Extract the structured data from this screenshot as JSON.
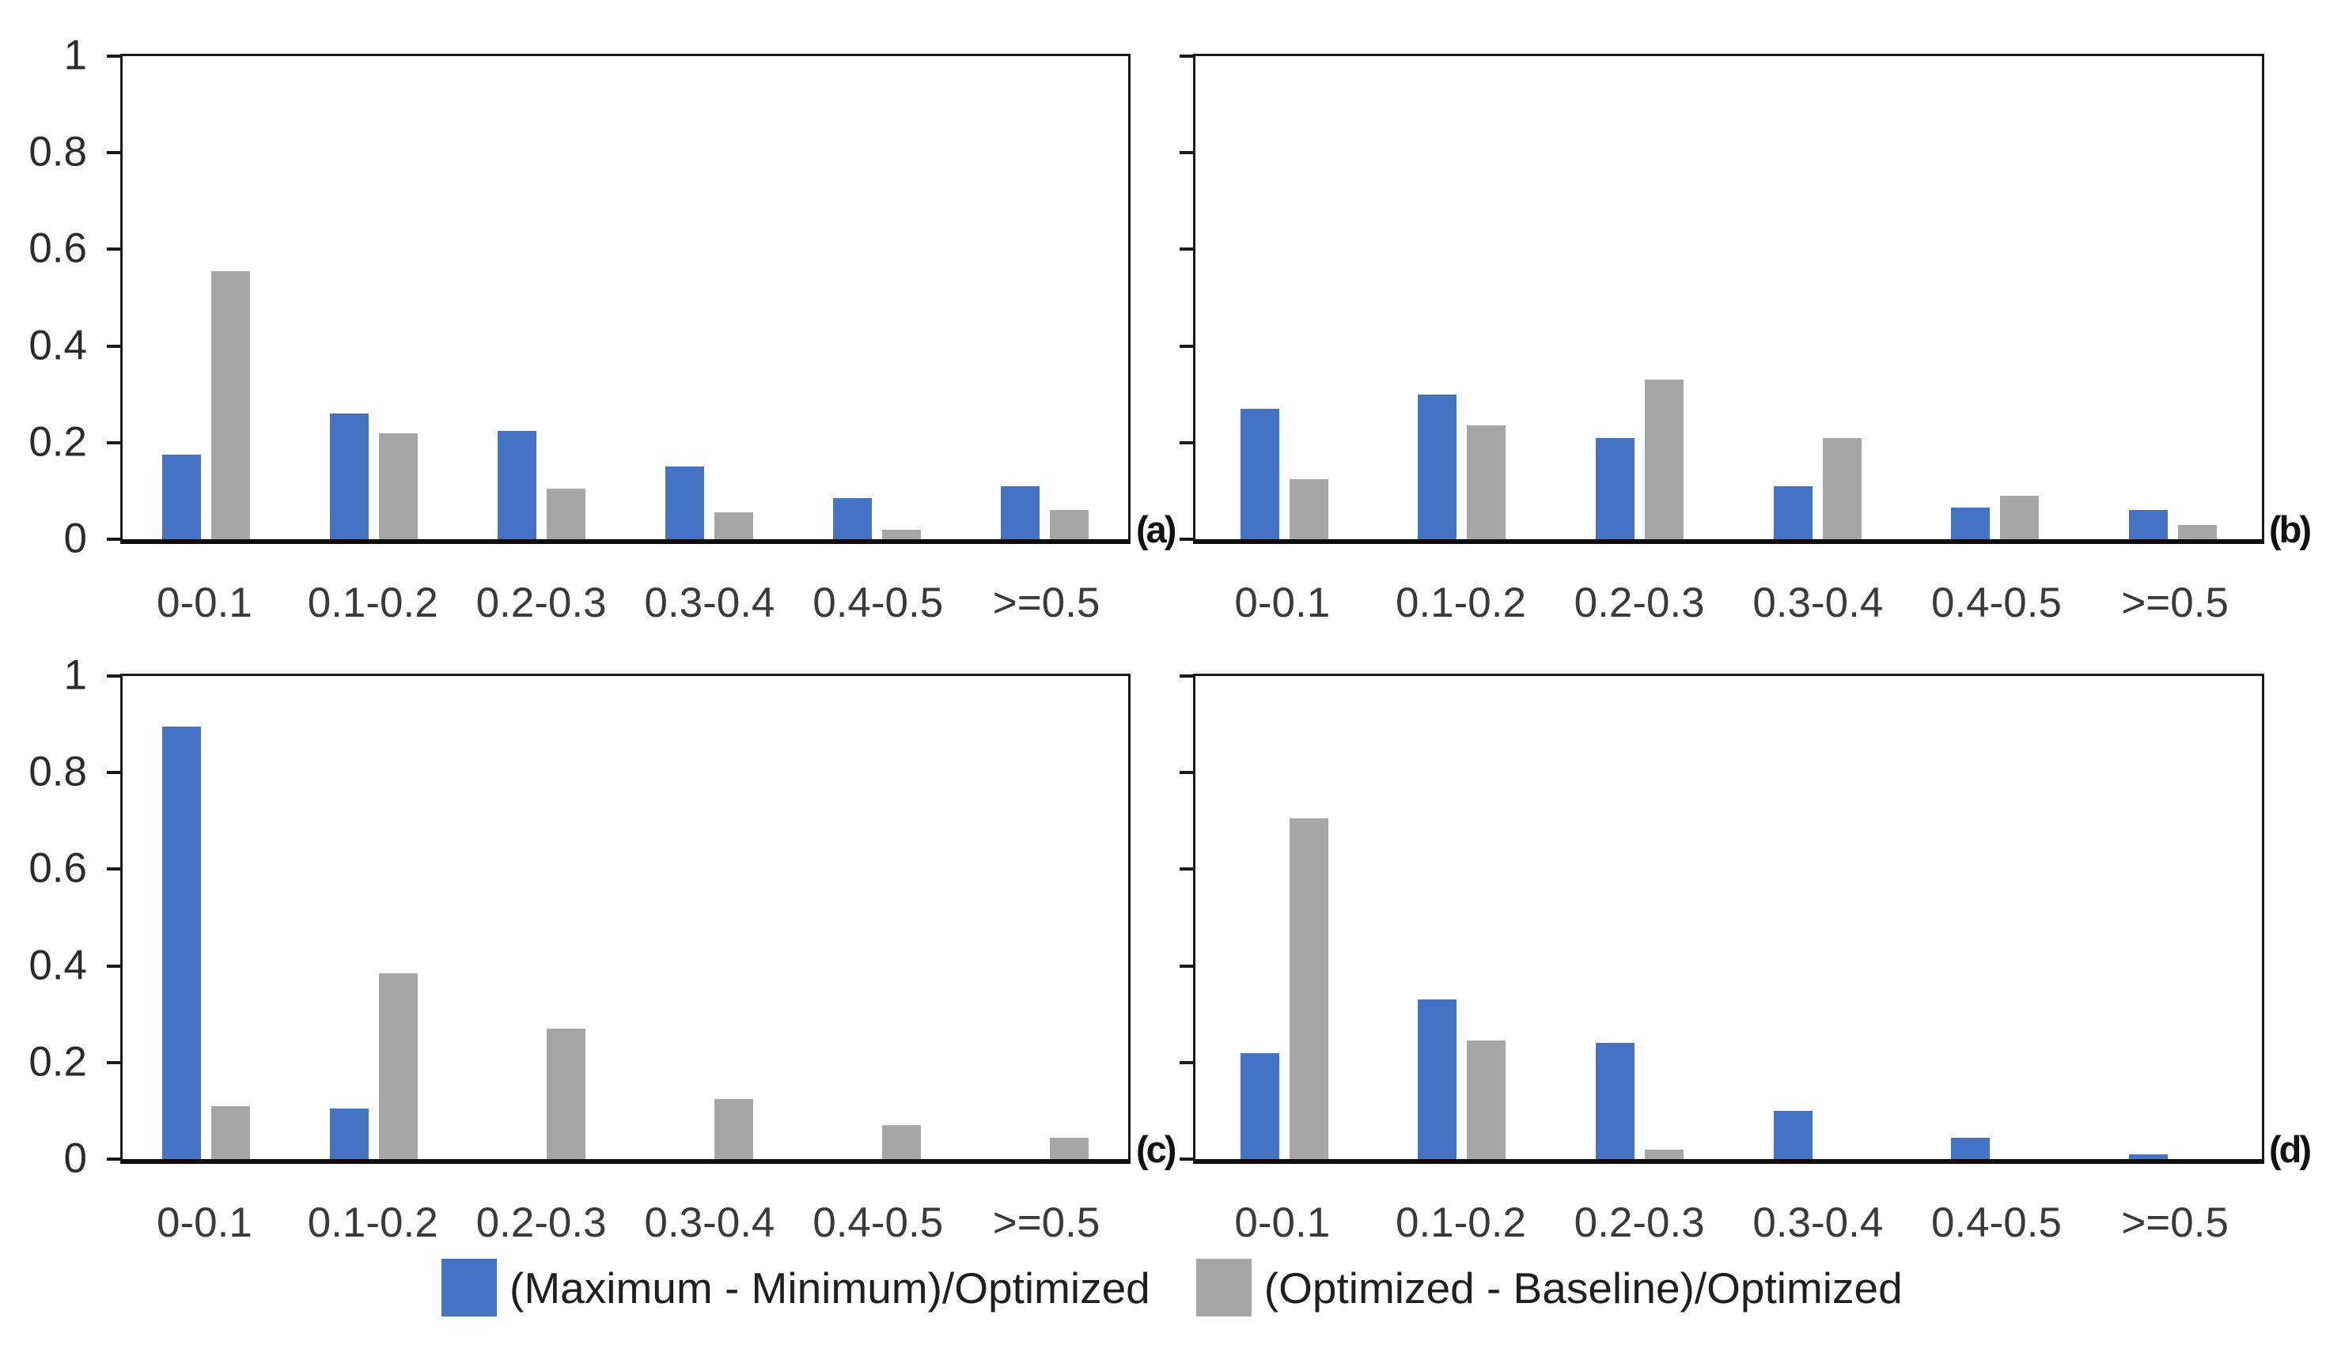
{
  "figure": {
    "background": "#ffffff",
    "categories": [
      "0-0.1",
      "0.1-0.2",
      "0.2-0.3",
      "0.3-0.4",
      "0.4-0.5",
      ">=0.5"
    ],
    "ytick_labels": [
      "0",
      "0.2",
      "0.4",
      "0.6",
      "0.8",
      "1"
    ],
    "colors": {
      "series1_blue": "#4472C4",
      "series2_gray": "#A6A6A6",
      "axis_line": "#1a1a1a",
      "tick_text": "#2b2b2b",
      "category_text": "#3a3a3a",
      "legend_text": "#1f1f1f"
    },
    "legend": {
      "position": "bottom-center",
      "items": [
        {
          "label": "(Maximum - Minimum)/Optimized",
          "color": "#4472C4"
        },
        {
          "label": "(Optimized - Baseline)/Optimized",
          "color": "#A6A6A6"
        }
      ]
    }
  },
  "chart_data": [
    {
      "type": "bar",
      "panel_label": "(a)",
      "position": "top-left",
      "categories": [
        "0-0.1",
        "0.1-0.2",
        "0.2-0.3",
        "0.3-0.4",
        "0.4-0.5",
        ">=0.5"
      ],
      "series": [
        {
          "name": "(Maximum - Minimum)/Optimized",
          "color": "#4472C4",
          "values": [
            0.175,
            0.26,
            0.225,
            0.15,
            0.085,
            0.11
          ]
        },
        {
          "name": "(Optimized - Baseline)/Optimized",
          "color": "#A6A6A6",
          "values": [
            0.555,
            0.22,
            0.105,
            0.055,
            0.02,
            0.06
          ]
        }
      ],
      "ylim": [
        0,
        1
      ],
      "yticks": [
        0,
        0.2,
        0.4,
        0.6,
        0.8,
        1
      ],
      "show_ytick_labels": true,
      "grid": false
    },
    {
      "type": "bar",
      "panel_label": "(b)",
      "position": "top-right",
      "categories": [
        "0-0.1",
        "0.1-0.2",
        "0.2-0.3",
        "0.3-0.4",
        "0.4-0.5",
        ">=0.5"
      ],
      "series": [
        {
          "name": "(Maximum - Minimum)/Optimized",
          "color": "#4472C4",
          "values": [
            0.27,
            0.3,
            0.21,
            0.11,
            0.065,
            0.06
          ]
        },
        {
          "name": "(Optimized - Baseline)/Optimized",
          "color": "#A6A6A6",
          "values": [
            0.125,
            0.235,
            0.33,
            0.21,
            0.09,
            0.03
          ]
        }
      ],
      "ylim": [
        0,
        1
      ],
      "yticks": [
        0,
        0.2,
        0.4,
        0.6,
        0.8,
        1
      ],
      "show_ytick_labels": false,
      "grid": false
    },
    {
      "type": "bar",
      "panel_label": "(c)",
      "position": "bottom-left",
      "categories": [
        "0-0.1",
        "0.1-0.2",
        "0.2-0.3",
        "0.3-0.4",
        "0.4-0.5",
        ">=0.5"
      ],
      "series": [
        {
          "name": "(Maximum - Minimum)/Optimized",
          "color": "#4472C4",
          "values": [
            0.895,
            0.105,
            0,
            0,
            0,
            0
          ]
        },
        {
          "name": "(Optimized - Baseline)/Optimized",
          "color": "#A6A6A6",
          "values": [
            0.11,
            0.385,
            0.27,
            0.125,
            0.07,
            0.045
          ]
        }
      ],
      "ylim": [
        0,
        1
      ],
      "yticks": [
        0,
        0.2,
        0.4,
        0.6,
        0.8,
        1
      ],
      "show_ytick_labels": true,
      "grid": false
    },
    {
      "type": "bar",
      "panel_label": "(d)",
      "position": "bottom-right",
      "categories": [
        "0-0.1",
        "0.1-0.2",
        "0.2-0.3",
        "0.3-0.4",
        "0.4-0.5",
        ">=0.5"
      ],
      "series": [
        {
          "name": "(Maximum - Minimum)/Optimized",
          "color": "#4472C4",
          "values": [
            0.22,
            0.33,
            0.24,
            0.1,
            0.045,
            0.01
          ]
        },
        {
          "name": "(Optimized - Baseline)/Optimized",
          "color": "#A6A6A6",
          "values": [
            0.705,
            0.245,
            0.02,
            0,
            0,
            0
          ]
        }
      ],
      "ylim": [
        0,
        1
      ],
      "yticks": [
        0,
        0.2,
        0.4,
        0.6,
        0.8,
        1
      ],
      "show_ytick_labels": false,
      "grid": false
    }
  ]
}
